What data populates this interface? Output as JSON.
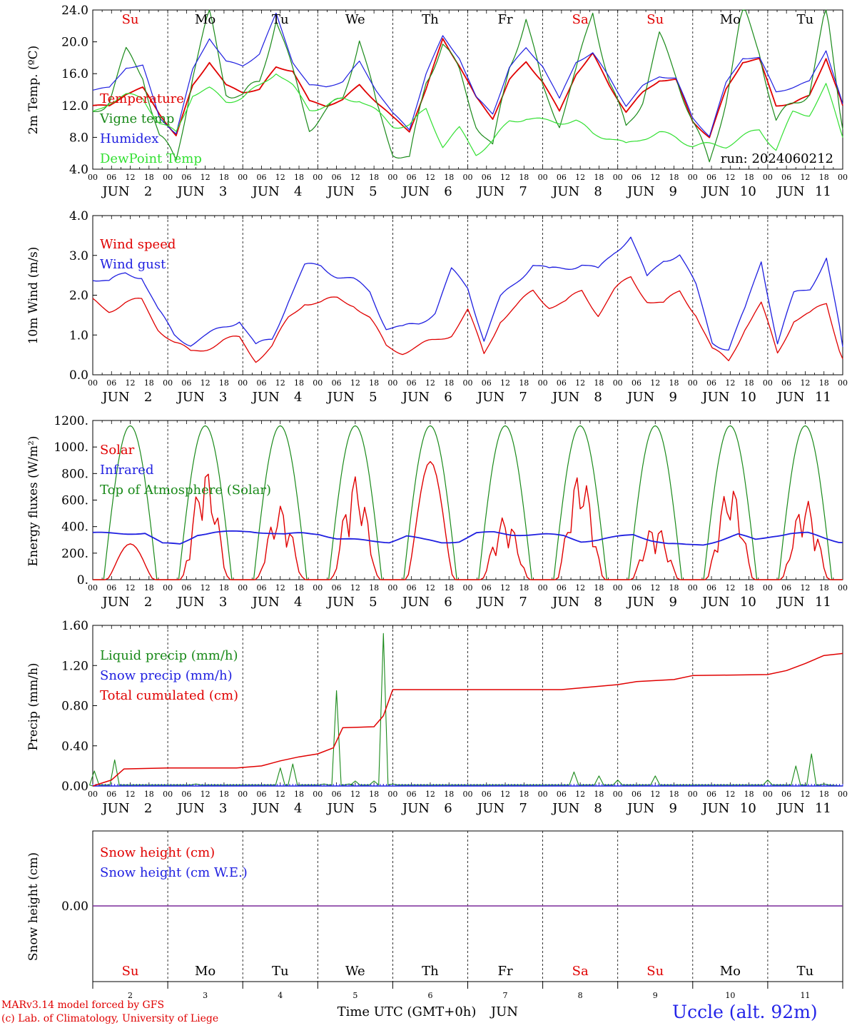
{
  "colors": {
    "red": "#e00000",
    "green": "#1a8a1a",
    "blue": "#1f1fe0",
    "lightgreen": "#33e033",
    "black": "#000000",
    "purple": "#7a2a9a",
    "station": "#2424e8"
  },
  "month": "JUN",
  "days": [
    "2",
    "3",
    "4",
    "5",
    "6",
    "7",
    "8",
    "9",
    "10",
    "11"
  ],
  "weekdays": [
    {
      "label": "Su",
      "color": "red"
    },
    {
      "label": "Mo",
      "color": "black"
    },
    {
      "label": "Tu",
      "color": "black"
    },
    {
      "label": "We",
      "color": "black"
    },
    {
      "label": "Th",
      "color": "black"
    },
    {
      "label": "Fr",
      "color": "black"
    },
    {
      "label": "Sa",
      "color": "red"
    },
    {
      "label": "Su",
      "color": "red"
    },
    {
      "label": "Mo",
      "color": "black"
    },
    {
      "label": "Tu",
      "color": "black"
    }
  ],
  "hour_labels": [
    "00",
    "06",
    "12",
    "18"
  ],
  "run_label": "run: 2024060212",
  "x_title": "Time UTC (GMT+0h)",
  "footer": {
    "left_line1": "MARv3.14 model forced by GFS",
    "left_line2": "(c) Lab. of Climatology, University of Liege",
    "station": "Uccle (alt. 92m)"
  },
  "chart_data": [
    {
      "type": "line",
      "ylabel": "2m Temp. (ºC)",
      "ylim": [
        4.0,
        24.0
      ],
      "yticks": [
        "4.0",
        "8.0",
        "12.0",
        "16.0",
        "20.0",
        "24.0"
      ],
      "x": "hours since Jun 2 00 UTC, 0..240 every 6h",
      "series": [
        {
          "name": "Temperature",
          "color": "red",
          "values": [
            12,
            11.9,
            13.5,
            14.2,
            11,
            8.2,
            14.5,
            17.5,
            14.5,
            13.7,
            14,
            16.8,
            16.4,
            12.5,
            12,
            12.7,
            14.6,
            12.5,
            10.5,
            8.8,
            14,
            20.4,
            17,
            13,
            10.4,
            15.2,
            17.5,
            15,
            11.2,
            16,
            18.5,
            14.5,
            11.2,
            13.6,
            15.2,
            15.2,
            10,
            8,
            14,
            17.5,
            17.8,
            12,
            12.3,
            13.2,
            18,
            12
          ]
        },
        {
          "name": "Vigne temp",
          "color": "green",
          "values": [
            11,
            13,
            18.5,
            16,
            8,
            5,
            16,
            23.5,
            14,
            13,
            15,
            23,
            16,
            9.5,
            11,
            13,
            20.5,
            12,
            6.5,
            5,
            15,
            20,
            16,
            10,
            6.5,
            17,
            23,
            14,
            10,
            16,
            24,
            15,
            9,
            13,
            20.5,
            16,
            10,
            4.5,
            13,
            24,
            19,
            10,
            12,
            14,
            24,
            9
          ]
        },
        {
          "name": "Humidex",
          "color": "blue",
          "values": [
            14,
            14.2,
            16.8,
            17,
            10.5,
            8.5,
            16.5,
            20.5,
            17.5,
            17,
            18.5,
            23.5,
            17.5,
            14.5,
            14.4,
            15,
            17.5,
            14,
            11,
            9,
            16,
            20.7,
            18,
            13,
            11,
            16.8,
            19.2,
            17,
            12.8,
            17.5,
            18.6,
            15.5,
            12,
            14.4,
            15.7,
            15.4,
            10.4,
            8.2,
            14.8,
            18,
            18,
            13.7,
            14.3,
            15,
            19,
            12.2
          ]
        },
        {
          "name": "DewPoint Temp",
          "color": "lightgreen",
          "values": [
            11,
            12.5,
            13.2,
            13,
            9.8,
            8.5,
            13.5,
            14,
            12.6,
            13,
            14.4,
            16.3,
            14.3,
            11.6,
            11.9,
            12.8,
            12.8,
            11.2,
            9.5,
            9.5,
            11.5,
            7,
            9,
            6,
            7.5,
            10,
            10.5,
            10,
            10,
            10,
            8.5,
            8,
            7,
            8,
            8.5,
            8,
            7,
            7,
            7,
            8,
            9,
            6.5,
            11,
            11,
            14.5,
            8
          ]
        }
      ]
    },
    {
      "type": "line",
      "ylabel": "10m Wind (m/s)",
      "ylim": [
        0.0,
        4.0
      ],
      "yticks": [
        "0.0",
        "1.0",
        "2.0",
        "3.0",
        "4.0"
      ],
      "series": [
        {
          "name": "Wind speed",
          "color": "red",
          "values": [
            1.85,
            1.65,
            1.8,
            1.85,
            1.2,
            0.8,
            0.55,
            0.7,
            0.85,
            0.9,
            0.4,
            0.7,
            1.4,
            1.85,
            1.8,
            1.9,
            1.8,
            1.4,
            0.7,
            0.6,
            0.7,
            0.85,
            1.05,
            1.6,
            0.5,
            1.4,
            1.7,
            2.1,
            1.75,
            1.8,
            2.1,
            1.55,
            2.1,
            2.45,
            1.9,
            1.75,
            2.1,
            1.55,
            0.6,
            0.35,
            1.2,
            1.75,
            0.55,
            1.4,
            1.5,
            1.8,
            0.4
          ]
        },
        {
          "name": "Wind gust",
          "color": "blue",
          "values": [
            2.45,
            2.3,
            2.55,
            2.5,
            1.6,
            1.0,
            0.8,
            0.95,
            1.2,
            1.4,
            0.7,
            0.9,
            1.9,
            2.7,
            2.75,
            2.5,
            2.35,
            2.1,
            1.2,
            1.15,
            1.3,
            1.6,
            2.6,
            2.2,
            0.9,
            1.9,
            2.35,
            2.8,
            2.6,
            2.7,
            2.8,
            2.6,
            3.1,
            3.5,
            2.4,
            2.9,
            3.05,
            2.2,
            0.85,
            0.65,
            1.6,
            2.9,
            0.8,
            2.0,
            2.2,
            2.95,
            0.7
          ]
        }
      ]
    },
    {
      "type": "line",
      "ylabel": "Energy fluxes (W/m²)",
      "ylim": [
        0,
        1200
      ],
      "yticks": [
        "0.",
        "200.",
        "400.",
        "600.",
        "800.",
        "1000.",
        "1200."
      ],
      "series": [
        {
          "name": "Solar",
          "color": "red",
          "peaks": [
            270,
            840,
            560,
            780,
            890,
            480,
            820,
            420,
            720,
            610
          ]
        },
        {
          "name": "Infrared",
          "color": "blue",
          "values": [
            350,
            350,
            350,
            350,
            270,
            270,
            340,
            355,
            360,
            365,
            355,
            340,
            350,
            345,
            310,
            300,
            290,
            285,
            330,
            300,
            280,
            290,
            350,
            355,
            340,
            340,
            340,
            330,
            290,
            300,
            320,
            340,
            300,
            270,
            260,
            265,
            300,
            340,
            300,
            330,
            350,
            350,
            310,
            280
          ]
        },
        {
          "name": "Top of Atmosphere (Solar)",
          "color": "green",
          "peak": 1160
        }
      ]
    },
    {
      "type": "line",
      "ylabel": "Precip (mm/h)",
      "ylim": [
        0.0,
        1.6
      ],
      "yticks": [
        "0.00",
        "0.40",
        "0.80",
        "1.20",
        "1.60"
      ],
      "series": [
        {
          "name": "Liquid precip (mm/h)",
          "color": "green",
          "spikes": [
            [
              0.5,
              0.15
            ],
            [
              7,
              0.26
            ],
            [
              33,
              0.02
            ],
            [
              60,
              0.18
            ],
            [
              64,
              0.22
            ],
            [
              74,
              0.02
            ],
            [
              78,
              0.95
            ],
            [
              82,
              0.02
            ],
            [
              84,
              0.05
            ],
            [
              90,
              0.05
            ],
            [
              93,
              1.52
            ],
            [
              96,
              0.02
            ],
            [
              154,
              0.14
            ],
            [
              162,
              0.1
            ],
            [
              168,
              0.06
            ],
            [
              180,
              0.1
            ],
            [
              216,
              0.06
            ],
            [
              225,
              0.2
            ],
            [
              230,
              0.32
            ],
            [
              234,
              0.02
            ]
          ]
        },
        {
          "name": "Snow precip (mm/h)",
          "color": "blue",
          "values": [
            0,
            0
          ]
        },
        {
          "name": "Total cumulated (cm)",
          "color": "red",
          "values": [
            [
              0,
              0
            ],
            [
              6,
              0.06
            ],
            [
              10,
              0.17
            ],
            [
              24,
              0.18
            ],
            [
              46,
              0.18
            ],
            [
              54,
              0.2
            ],
            [
              60,
              0.25
            ],
            [
              66,
              0.29
            ],
            [
              72,
              0.32
            ],
            [
              77,
              0.38
            ],
            [
              80,
              0.58
            ],
            [
              90,
              0.59
            ],
            [
              93,
              0.7
            ],
            [
              96,
              0.96
            ],
            [
              150,
              0.96
            ],
            [
              168,
              1.01
            ],
            [
              174,
              1.04
            ],
            [
              186,
              1.06
            ],
            [
              192,
              1.1
            ],
            [
              216,
              1.11
            ],
            [
              222,
              1.15
            ],
            [
              228,
              1.22
            ],
            [
              234,
              1.3
            ],
            [
              240,
              1.32
            ]
          ]
        }
      ]
    },
    {
      "type": "line",
      "ylabel": "Snow height (cm)",
      "yticks": [
        "0.00"
      ],
      "series": [
        {
          "name": "Snow height (cm)",
          "color": "red",
          "values": [
            0,
            0
          ]
        },
        {
          "name": "Snow height (cm W.E.)",
          "color": "blue",
          "values": [
            0,
            0
          ]
        }
      ]
    }
  ]
}
